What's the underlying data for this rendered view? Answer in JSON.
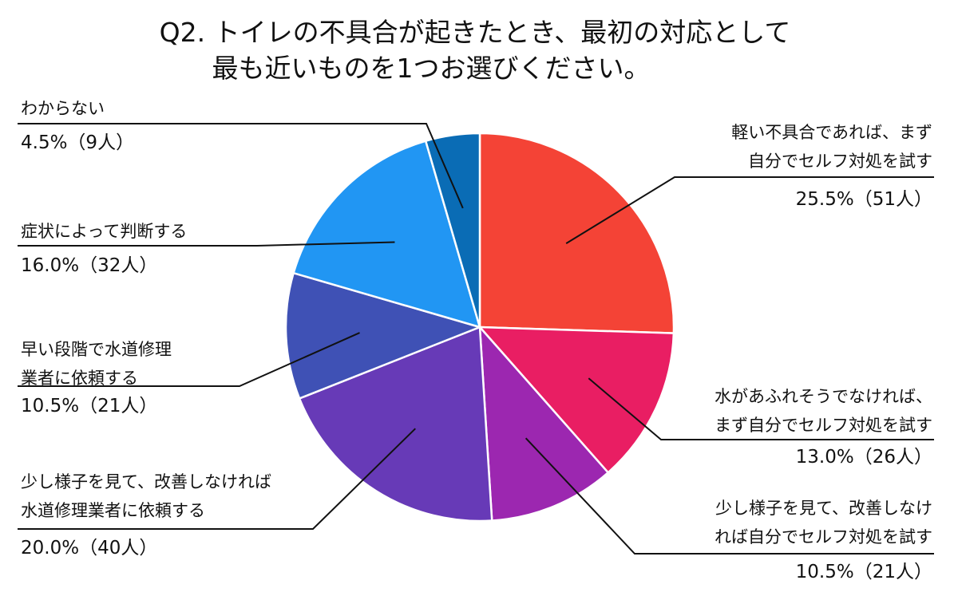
{
  "chart_data": {
    "type": "pie",
    "title": [
      "Q2. トイレの不具合が起きたとき、最初の対応として",
      "最も近いものを1つお選びください。"
    ],
    "series": [
      {
        "values": [
          25.5,
          13.0,
          10.5,
          20.0,
          10.5,
          16.0,
          4.5
        ],
        "counts": [
          51,
          26,
          21,
          40,
          21,
          32,
          9
        ]
      }
    ],
    "categories": [
      "軽い不具合であれば、まず自分でセルフ対処を試す",
      "水があふれそうでなければ、まず自分でセルフ対処を試す",
      "少し様子を見て、改善しなければ自分でセルフ対処を試す",
      "少し様子を見て、改善しなければ水道修理業者に依頼する",
      "早い段階で水道修理業者に依頼する",
      "症状によって判断する",
      "わからない"
    ],
    "label_lines": [
      [
        "軽い不具合であれば、まず",
        "自分でセルフ対処を試す"
      ],
      [
        "水があふれそうでなければ、",
        "まず自分でセルフ対処を試す"
      ],
      [
        "少し様子を見て、改善しなけ",
        "れば自分でセルフ対処を試す"
      ],
      [
        "少し様子を見て、改善しなければ",
        "水道修理業者に依頼する"
      ],
      [
        "早い段階で水道修理",
        "業者に依頼する"
      ],
      [
        "症状によって判断する"
      ],
      [
        "わからない"
      ]
    ],
    "value_labels": [
      "25.5%（51人）",
      "13.0%（26人）",
      "10.5%（21人）",
      "20.0%（40人）",
      "10.5%（21人）",
      "16.0%（32人）",
      "4.5%（9人）"
    ],
    "colors": [
      "#f44336",
      "#e91e63",
      "#9c27b0",
      "#673ab7",
      "#3f51b5",
      "#2196f3",
      "#0a6cb5"
    ],
    "legend": "none"
  }
}
